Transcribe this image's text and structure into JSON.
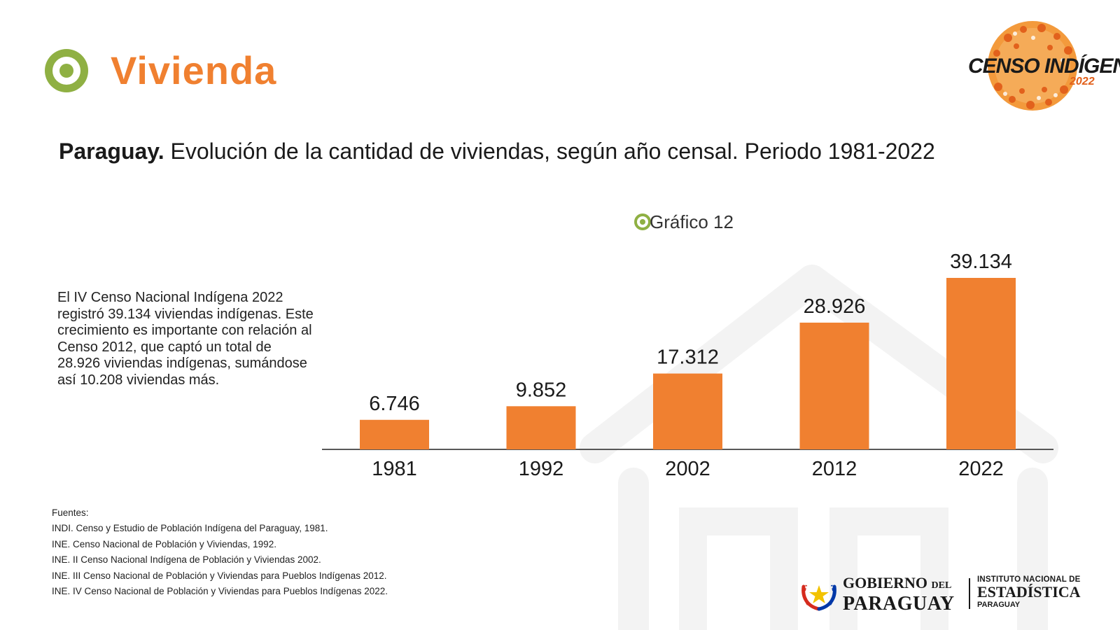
{
  "header": {
    "section_title": "Vivienda",
    "accent_color": "#f08030",
    "icon_color": "#8fb043"
  },
  "logo": {
    "text": "CENSO INDÍGENA",
    "year": "2022"
  },
  "chart_title": {
    "bold": "Paraguay.",
    "rest": " Evolución de la cantidad de viviendas, según año censal. Periodo 1981-2022"
  },
  "grafico_label": "Gráfico 12",
  "description": "El IV Censo Nacional Indígena 2022 registró 39.134 viviendas indígenas. Este crecimiento es importante con relación al Censo 2012, que captó un total de 28.926 viviendas indígenas, sumándose así 10.208 viviendas más.",
  "chart_data": {
    "type": "bar",
    "categories": [
      "1981",
      "1992",
      "2002",
      "2012",
      "2022"
    ],
    "values": [
      6746,
      9852,
      17312,
      28926,
      39134
    ],
    "value_labels": [
      "6.746",
      "9.852",
      "17.312",
      "28.926",
      "39.134"
    ],
    "title": "",
    "xlabel": "",
    "ylabel": "",
    "ylim": [
      0,
      39134
    ],
    "grid": false,
    "bar_color": "#f08030"
  },
  "sources": {
    "heading": "Fuentes:",
    "items": [
      "INDI. Censo y Estudio de Población Indígena del Paraguay, 1981.",
      "INE. Censo Nacional de Población y Viviendas, 1992.",
      "INE. II Censo Nacional Indígena de Población y Viviendas 2002.",
      "INE. III Censo Nacional de Población y Viviendas para Pueblos Indígenas 2012.",
      "INE. IV Censo Nacional de Población y Viviendas para Pueblos Indígenas 2022."
    ]
  },
  "footer": {
    "gov_line1": "GOBIERNO",
    "gov_line1_small": "DEL",
    "gov_line2": "PARAGUAY",
    "ine_line1": "INSTITUTO NACIONAL DE",
    "ine_line2": "ESTADÍSTICA",
    "ine_line3": "PARAGUAY"
  }
}
